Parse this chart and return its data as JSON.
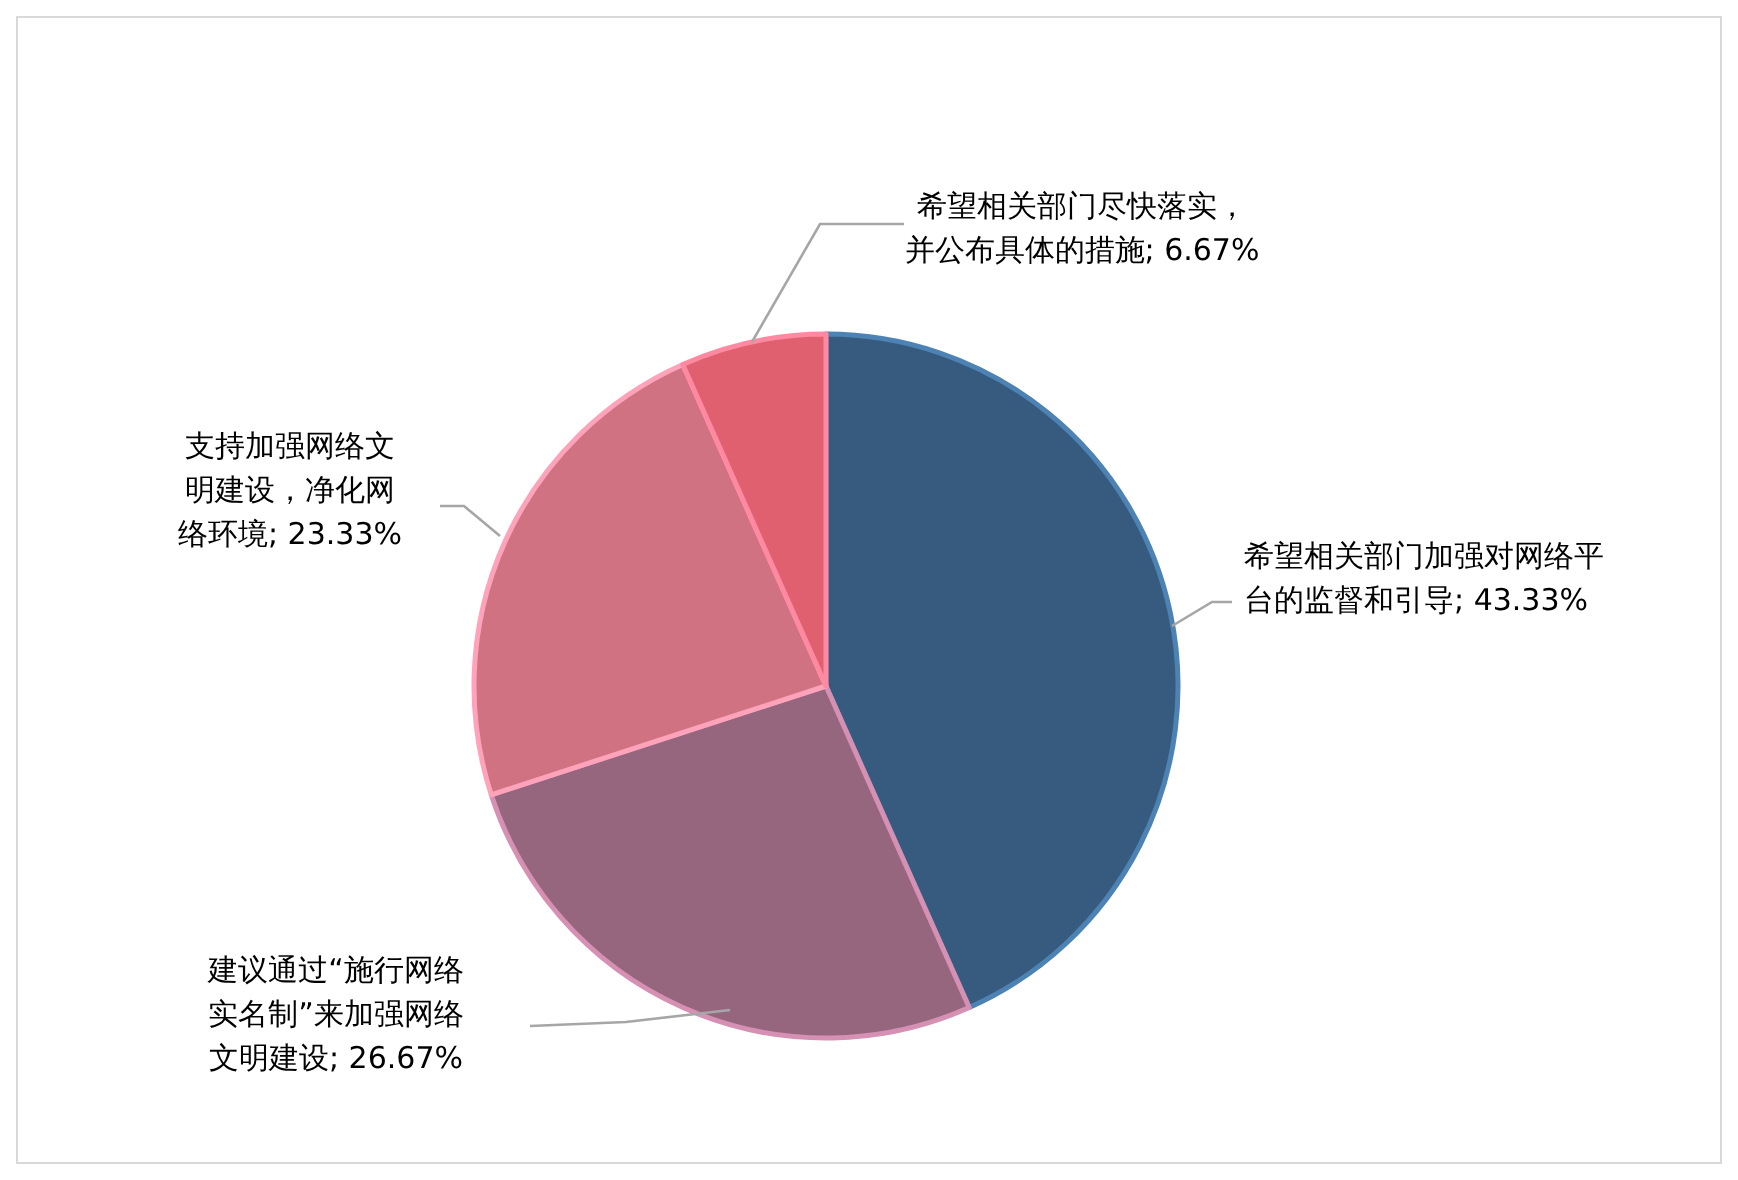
{
  "chart_data": {
    "type": "pie",
    "categories": [
      "希望相关部门加强对网络平台的监督和引导",
      "建议通过“施行网络实名制”来加强网络文明建设",
      "支持加强网络文明建设，净化网络环境",
      "希望相关部门尽快落实，并公布具体的措施"
    ],
    "values": [
      43.33,
      26.67,
      23.33,
      6.67
    ],
    "colors": [
      "#365b7e",
      "#96657e",
      "#d07282",
      "#e06070"
    ],
    "value_labels": [
      "; 43.33%",
      "; 26.67%",
      "; 23.33%",
      "; 6.67%"
    ]
  }
}
